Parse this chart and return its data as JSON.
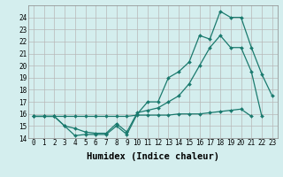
{
  "xlabel": "Humidex (Indice chaleur)",
  "x": [
    0,
    1,
    2,
    3,
    4,
    5,
    6,
    7,
    8,
    9,
    10,
    11,
    12,
    13,
    14,
    15,
    16,
    17,
    18,
    19,
    20,
    21,
    22,
    23
  ],
  "line1": [
    15.8,
    15.8,
    15.8,
    15.0,
    14.2,
    14.3,
    14.3,
    14.3,
    15.0,
    14.3,
    16.0,
    17.0,
    17.0,
    19.0,
    19.5,
    20.3,
    22.5,
    22.2,
    24.5,
    24.0,
    24.0,
    21.5,
    19.3,
    17.5
  ],
  "line2": [
    15.8,
    15.8,
    15.8,
    15.0,
    14.8,
    14.5,
    14.4,
    14.4,
    15.2,
    14.5,
    16.1,
    16.3,
    16.5,
    17.0,
    17.5,
    18.5,
    20.0,
    21.5,
    22.5,
    21.5,
    21.5,
    19.5,
    15.8,
    null
  ],
  "line3": [
    15.8,
    15.8,
    15.8,
    15.8,
    15.8,
    15.8,
    15.8,
    15.8,
    15.8,
    15.8,
    15.9,
    15.9,
    15.9,
    15.9,
    16.0,
    16.0,
    16.0,
    16.1,
    16.2,
    16.3,
    16.4,
    15.8,
    null,
    null
  ],
  "line_color": "#1a7a6e",
  "bg_color": "#d4eeee",
  "grid_color": "#b8b8b8",
  "ylim": [
    14,
    25
  ],
  "xlim": [
    -0.5,
    23.5
  ],
  "yticks": [
    14,
    15,
    16,
    17,
    18,
    19,
    20,
    21,
    22,
    23,
    24
  ],
  "xticks": [
    0,
    1,
    2,
    3,
    4,
    5,
    6,
    7,
    8,
    9,
    10,
    11,
    12,
    13,
    14,
    15,
    16,
    17,
    18,
    19,
    20,
    21,
    22,
    23
  ],
  "tick_fontsize": 5.5,
  "label_fontsize": 7.5
}
